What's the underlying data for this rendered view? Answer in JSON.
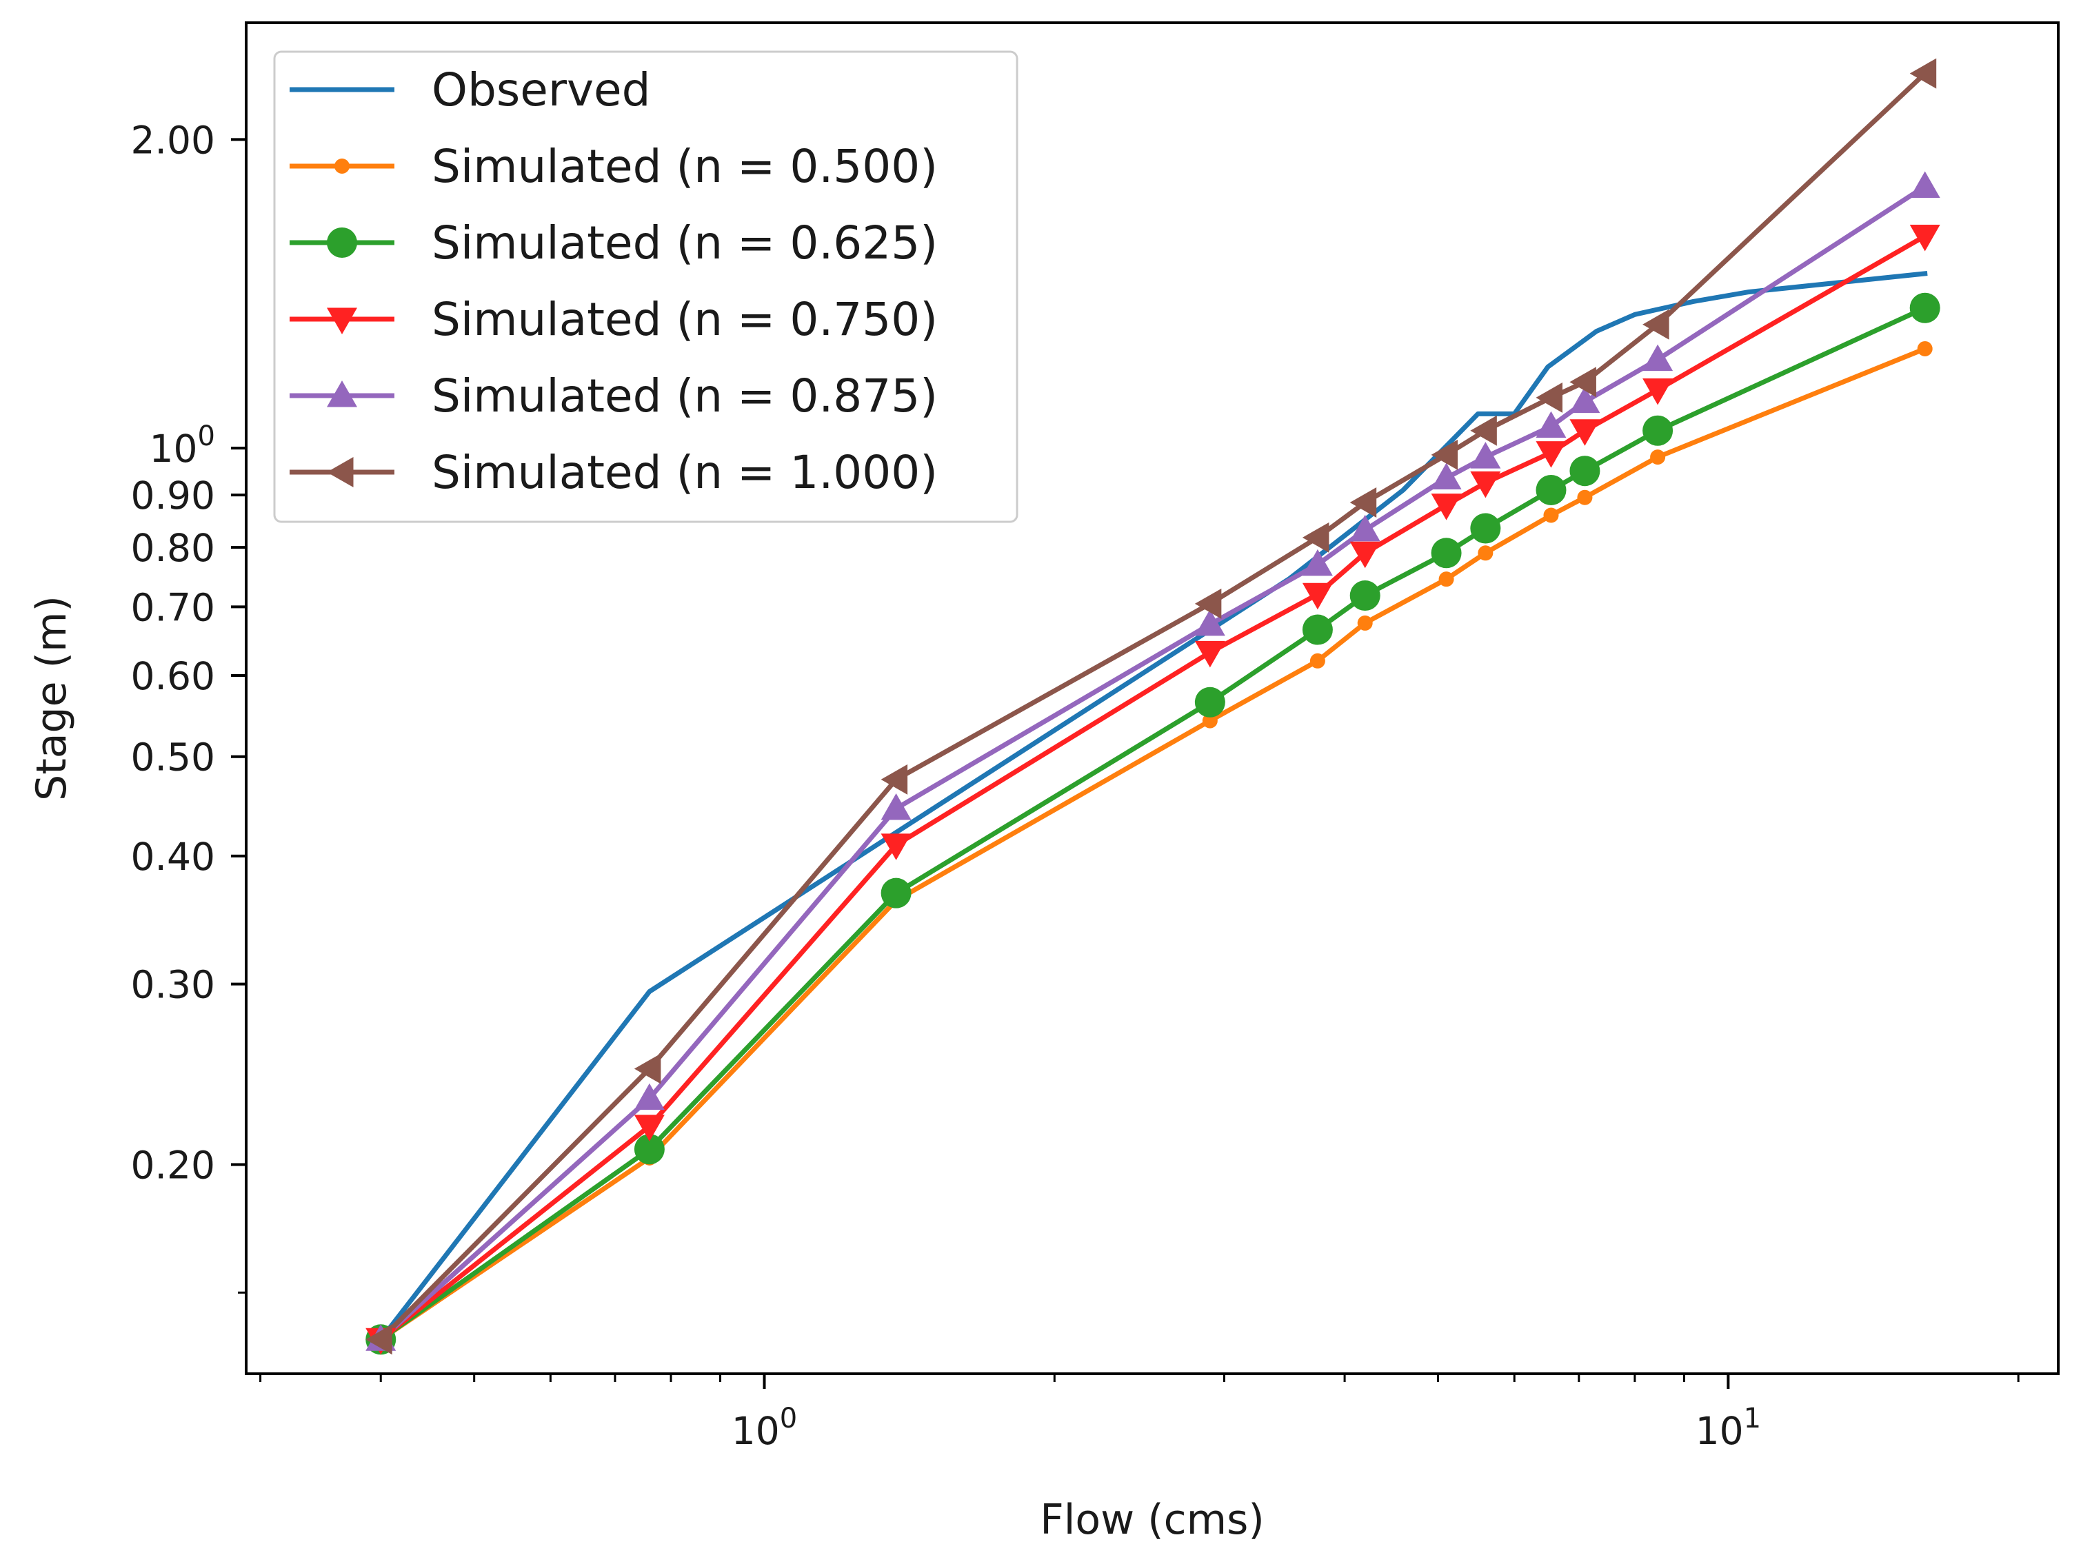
{
  "chart_data": {
    "type": "line",
    "xscale": "log",
    "yscale": "log",
    "xlabel": "Flow (cms)",
    "ylabel": "Stage (m)",
    "xlim": [
      0.29,
      22
    ],
    "ylim": [
      0.125,
      2.6
    ],
    "x_ticks": [
      {
        "value": 1,
        "base": "10",
        "exp": "0"
      },
      {
        "value": 10,
        "base": "10",
        "exp": "1"
      }
    ],
    "y_ticks": [
      {
        "value": 0.2,
        "label": "0.20"
      },
      {
        "value": 0.3,
        "label": "0.30"
      },
      {
        "value": 0.4,
        "label": "0.40"
      },
      {
        "value": 0.5,
        "label": "0.50"
      },
      {
        "value": 0.6,
        "label": "0.60"
      },
      {
        "value": 0.7,
        "label": "0.70"
      },
      {
        "value": 0.8,
        "label": "0.80"
      },
      {
        "value": 0.9,
        "label": "0.90"
      },
      {
        "value": 1.0,
        "label": "",
        "base": "10",
        "exp": "0"
      },
      {
        "value": 2.0,
        "label": "2.00"
      }
    ],
    "legend_position": "top-left",
    "series": [
      {
        "name": "Observed",
        "color": "#1f77b4",
        "marker": "none",
        "x": [
          0.4,
          0.76,
          3.5,
          4.6,
          5.5,
          6.0,
          6.5,
          7.3,
          8.0,
          9.2,
          10.5,
          16.0
        ],
        "y": [
          0.135,
          0.295,
          0.745,
          0.91,
          1.08,
          1.08,
          1.2,
          1.3,
          1.35,
          1.39,
          1.42,
          1.48
        ]
      },
      {
        "name": "Simulated (n = 0.500)",
        "color": "#ff7f0e",
        "marker": "small-dot",
        "x": [
          0.4,
          0.76,
          1.37,
          2.9,
          3.75,
          4.2,
          5.1,
          5.6,
          6.55,
          7.1,
          8.45,
          16.0
        ],
        "y": [
          0.135,
          0.203,
          0.362,
          0.542,
          0.62,
          0.675,
          0.745,
          0.79,
          0.86,
          0.895,
          0.98,
          1.25
        ]
      },
      {
        "name": "Simulated (n = 0.625)",
        "color": "#2ca02c",
        "marker": "circle",
        "x": [
          0.4,
          0.76,
          1.37,
          2.9,
          3.75,
          4.2,
          5.1,
          5.6,
          6.55,
          7.1,
          8.45,
          16.0
        ],
        "y": [
          0.135,
          0.207,
          0.368,
          0.565,
          0.665,
          0.718,
          0.79,
          0.835,
          0.91,
          0.95,
          1.04,
          1.37
        ]
      },
      {
        "name": "Simulated (n = 0.750)",
        "color": "#ff2222",
        "marker": "triangle-down",
        "x": [
          0.4,
          0.76,
          1.37,
          2.9,
          3.75,
          4.2,
          5.1,
          5.6,
          6.55,
          7.1,
          8.45,
          16.0
        ],
        "y": [
          0.135,
          0.218,
          0.41,
          0.632,
          0.72,
          0.79,
          0.88,
          0.925,
          0.99,
          1.04,
          1.14,
          1.61
        ]
      },
      {
        "name": "Simulated (n = 0.875)",
        "color": "#9467bd",
        "marker": "triangle-up",
        "x": [
          0.4,
          0.76,
          1.37,
          2.9,
          3.75,
          4.2,
          5.1,
          5.6,
          6.55,
          7.1,
          8.45,
          16.0
        ],
        "y": [
          0.135,
          0.232,
          0.445,
          0.673,
          0.77,
          0.832,
          0.935,
          0.98,
          1.05,
          1.11,
          1.22,
          1.8
        ]
      },
      {
        "name": "Simulated (n = 1.000)",
        "color": "#8c564b",
        "marker": "triangle-left",
        "x": [
          0.4,
          0.76,
          1.37,
          2.9,
          3.75,
          4.2,
          5.1,
          5.6,
          6.55,
          7.1,
          8.45,
          16.0
        ],
        "y": [
          0.135,
          0.248,
          0.475,
          0.705,
          0.818,
          0.885,
          0.985,
          1.04,
          1.12,
          1.16,
          1.32,
          2.32
        ]
      }
    ]
  }
}
